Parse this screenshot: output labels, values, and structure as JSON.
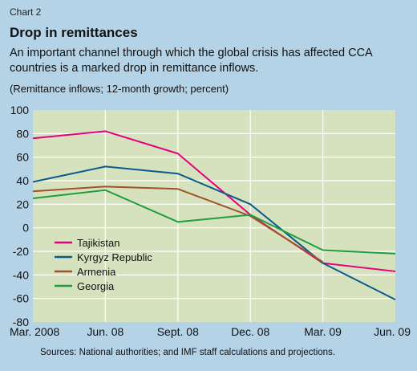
{
  "header": {
    "chart_label": "Chart 2",
    "title": "Drop in remittances",
    "subtitle": "An important channel through which the global crisis has affected CCA countries is a marked drop in remittance inflows.",
    "units": "(Remittance inflows; 12-month growth; percent)"
  },
  "source": "Sources: National authorities; and IMF staff calculations and projections.",
  "colors": {
    "background": "#b5d3e6",
    "plot_area": "#d6e2bd",
    "grid": "#ffffff"
  },
  "chart_data": {
    "type": "line",
    "categories": [
      "Mar. 2008",
      "Jun. 08",
      "Sept. 08",
      "Dec. 08",
      "Mar. 09",
      "Jun. 09"
    ],
    "ylim": [
      -80,
      100
    ],
    "yticks": [
      100,
      80,
      60,
      40,
      20,
      0,
      -20,
      -40,
      -60,
      -80
    ],
    "grid": true,
    "legend_position": "bottom-left",
    "series": [
      {
        "name": "Tajikistan",
        "color": "#e6007e",
        "values": [
          76,
          82,
          63,
          11,
          -30,
          -37
        ]
      },
      {
        "name": "Kyrgyz Republic",
        "color": "#0a5a8c",
        "values": [
          39,
          52,
          46,
          20,
          -30,
          -61
        ]
      },
      {
        "name": "Armenia",
        "color": "#a0522d",
        "values": [
          31,
          35,
          33,
          10,
          -29,
          null
        ]
      },
      {
        "name": "Georgia",
        "color": "#1e9e3e",
        "values": [
          25,
          32,
          5,
          11,
          -19,
          -22
        ]
      }
    ]
  }
}
